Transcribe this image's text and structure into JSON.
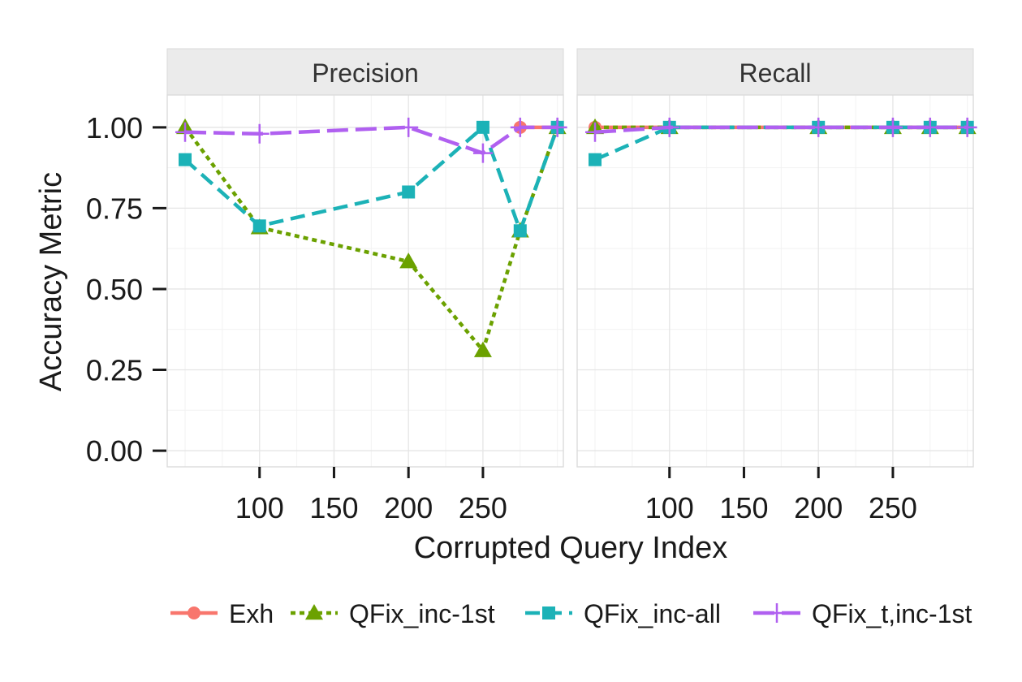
{
  "chart_data": {
    "type": "line",
    "xlabel": "Corrupted Query Index",
    "ylabel": "Accuracy Metric",
    "xlim": [
      38,
      304
    ],
    "ylim": [
      -0.05,
      1.1
    ],
    "x_ticks": [
      100,
      150,
      200,
      250
    ],
    "x_tick_labels": [
      "100",
      "150",
      "200",
      "250"
    ],
    "y_ticks": [
      0,
      0.25,
      0.5,
      0.75,
      1.0
    ],
    "y_tick_labels": [
      "0.00",
      "0.25",
      "0.50",
      "0.75",
      "1.00"
    ],
    "grid": true,
    "legend_position": "bottom",
    "series": [
      {
        "name": "Exh",
        "color": "#F8766D",
        "dash": "solid",
        "marker": "circle"
      },
      {
        "name": "QFix_inc-1st",
        "color": "#6BA100",
        "dash": "dotted",
        "marker": "triangle"
      },
      {
        "name": "QFix_inc-all",
        "color": "#1CB2B7",
        "dash": "dashed",
        "marker": "square"
      },
      {
        "name": "QFix_t,inc-1st",
        "color": "#B060F0",
        "dash": "longdash",
        "marker": "plus"
      }
    ],
    "panels": [
      {
        "label": "Precision",
        "data": {
          "Exh": {
            "x": [
              275,
              300
            ],
            "y": [
              1.0,
              1.0
            ]
          },
          "QFix_inc-1st": {
            "x": [
              50,
              100,
              200,
              250,
              275,
              300
            ],
            "y": [
              1.0,
              0.69,
              0.585,
              0.31,
              0.68,
              1.0
            ]
          },
          "QFix_inc-all": {
            "x": [
              50,
              100,
              200,
              250,
              275,
              300
            ],
            "y": [
              0.9,
              0.695,
              0.8,
              1.0,
              0.68,
              1.0
            ]
          },
          "QFix_t,inc-1st": {
            "x": [
              50,
              100,
              200,
              250,
              275,
              300
            ],
            "y": [
              0.985,
              0.98,
              1.0,
              0.92,
              1.0,
              1.0
            ]
          }
        }
      },
      {
        "label": "Recall",
        "data": {
          "Exh": {
            "x": [
              50,
              100,
              200,
              250,
              275,
              300
            ],
            "y": [
              1.0,
              1.0,
              1.0,
              1.0,
              1.0,
              1.0
            ]
          },
          "QFix_inc-1st": {
            "x": [
              50,
              100,
              200,
              250,
              275,
              300
            ],
            "y": [
              1.0,
              1.0,
              1.0,
              1.0,
              1.0,
              1.0
            ]
          },
          "QFix_inc-all": {
            "x": [
              50,
              100,
              200,
              250,
              275,
              300
            ],
            "y": [
              0.9,
              1.0,
              1.0,
              1.0,
              1.0,
              1.0
            ]
          },
          "QFix_t,inc-1st": {
            "x": [
              50,
              100,
              200,
              250,
              275,
              300
            ],
            "y": [
              0.985,
              1.0,
              1.0,
              1.0,
              1.0,
              1.0
            ]
          }
        }
      }
    ]
  }
}
